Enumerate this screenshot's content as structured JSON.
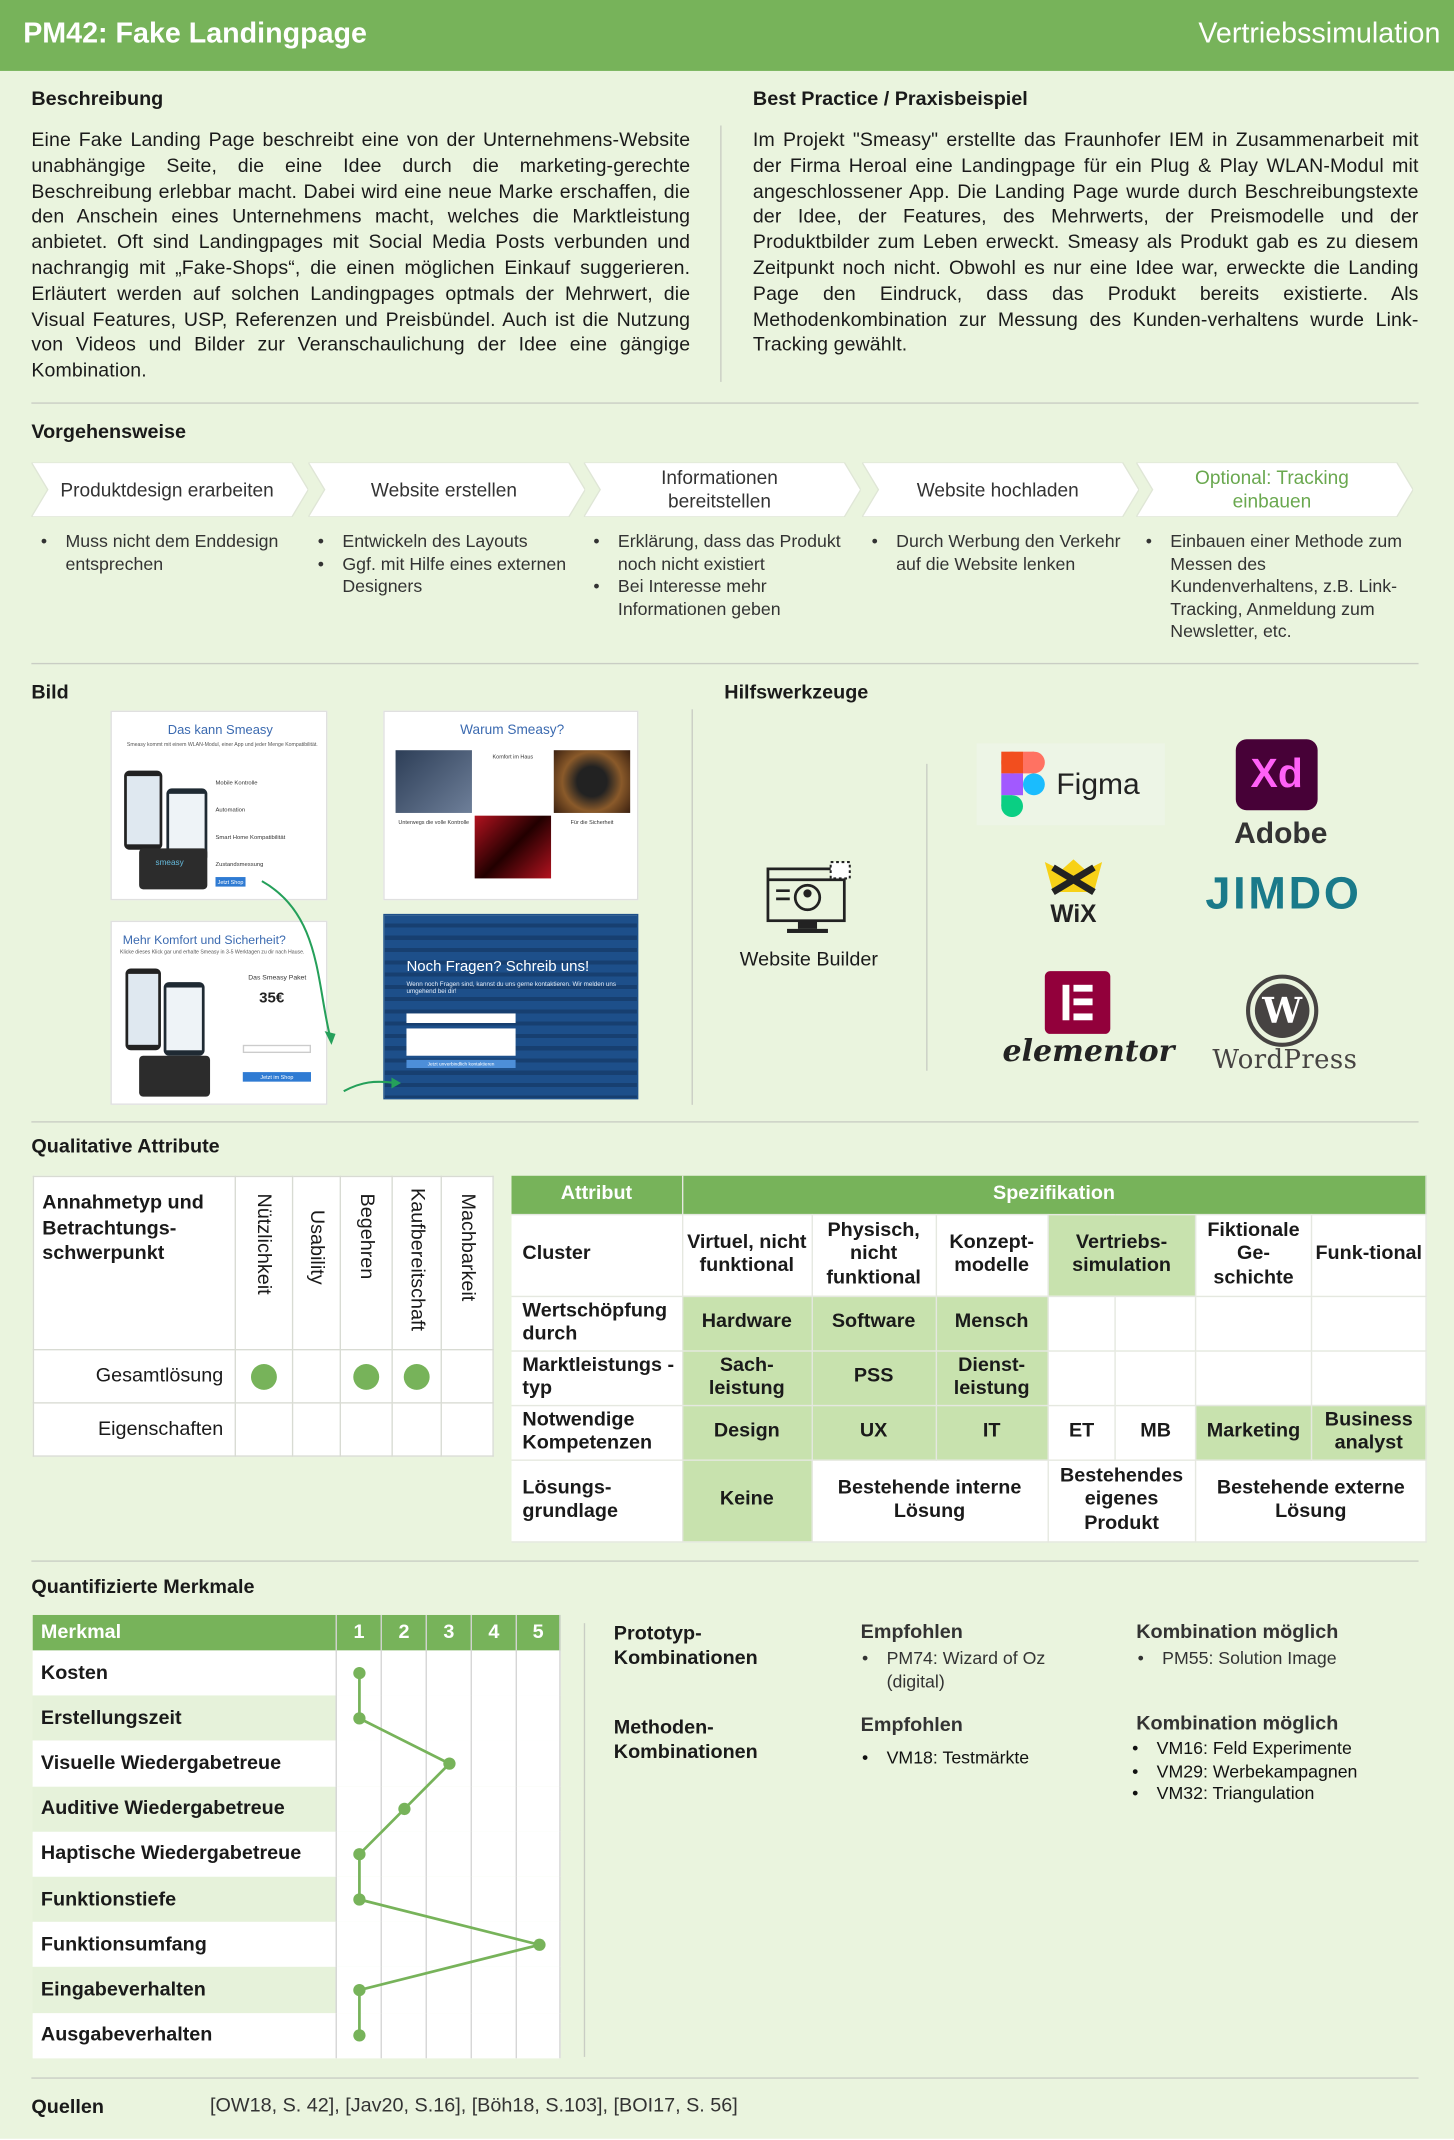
{
  "header": {
    "title": "PM42: Fake Landingpage",
    "category": "Vertriebssimulation"
  },
  "beschreibung": {
    "heading": "Beschreibung",
    "text": "Eine Fake Landing Page beschreibt eine von der Unternehmens-Website unabhängige Seite, die eine Idee durch die marketing-gerechte Beschreibung erlebbar macht. Dabei wird eine neue Marke erschaffen, die den Anschein eines Unternehmens macht, welches die Marktleistung anbietet. Oft sind Landingpages mit Social Media Posts verbunden und nachrangig mit „Fake-Shops“, die einen möglichen Einkauf suggerieren. Erläutert werden auf solchen Landingpages optmals der Mehrwert, die Visual Features, USP, Referenzen und Preisbündel. Auch ist die Nutzung von Videos und Bilder zur Veranschaulichung der Idee eine gängige Kombination."
  },
  "best_practice": {
    "heading": "Best Practice / Praxisbeispiel",
    "text": "Im Projekt \"Smeasy\" erstellte das Fraunhofer IEM in Zusammenarbeit mit der Firma Heroal eine Landingpage für ein Plug & Play WLAN-Modul mit angeschlossener App. Die Landing Page wurde durch Beschreibungstexte der Idee, der Features, des Mehrwerts, der Preismodelle und der Produktbilder zum Leben erweckt. Smeasy als Produkt gab es zu diesem Zeitpunkt noch nicht. Obwohl es nur eine Idee war, erweckte die Landing Page den Eindruck, dass das Produkt bereits existierte. Als Methodenkombination zur Messung des Kunden-verhaltens wurde Link-Tracking gewählt."
  },
  "vorgehensweise": {
    "heading": "Vorgehensweise",
    "steps": [
      {
        "title": "Produktdesign erarbeiten",
        "bullets": [
          "Muss nicht dem Enddesign entsprechen"
        ],
        "optional": false
      },
      {
        "title": "Website erstellen",
        "bullets": [
          "Entwickeln des Layouts",
          "Ggf. mit Hilfe eines externen Designers"
        ],
        "optional": false
      },
      {
        "title": "Informationen bereitstellen",
        "bullets": [
          "Erklärung, dass das Produkt noch nicht existiert",
          "Bei Interesse mehr Informationen geben"
        ],
        "optional": false
      },
      {
        "title": "Website hochladen",
        "bullets": [
          "Durch Werbung den Verkehr auf die Website lenken"
        ],
        "optional": false
      },
      {
        "title": "Optional: Tracking einbauen",
        "bullets": [
          "Einbauen einer Methode zum Messen des Kundenverhaltens, z.B. Link-Tracking, Anmeldung zum Newsletter, etc."
        ],
        "optional": true
      }
    ]
  },
  "bild": {
    "heading": "Bild",
    "shots": [
      {
        "title": "Das kann Smeasy",
        "sub": "Smeasy kommt mit einem WLAN-Modul, einer App und jeder Menge Kompatibilität.",
        "features": [
          "Mobile Kontrolle",
          "Automation",
          "Smart Home Kompatibilität",
          "Zustandsmessung"
        ],
        "cta": "Jetzt Shop"
      },
      {
        "title": "Warum Smeasy?",
        "labels": [
          "Komfort im Haus",
          "Unterwegs die volle Kontrolle",
          "Für die Sicherheit"
        ]
      },
      {
        "title": "Mehr Komfort und Sicherheit?",
        "sub": "Klicke dieses Klick gar und erhalte Smeasy in 3-5 Werktagen zu dir nach Hause.",
        "pkg": "Das Smeasy Paket",
        "price": "35€",
        "cta": "Jetzt im Shop"
      },
      {
        "title": "Noch Fragen? Schreib uns!",
        "sub": "Wenn noch Fragen sind, kannst du uns gerne kontaktieren. Wir melden uns umgehend bei dir!",
        "cta": "Jetzt unverbindlich kontaktieren"
      }
    ]
  },
  "hilfswerkzeuge": {
    "heading": "Hilfswerkzeuge",
    "builder_label": "Website Builder",
    "tools": [
      "Figma",
      "Adobe",
      "Xd",
      "WiX",
      "JIMDO",
      "elementor",
      "WordPress"
    ]
  },
  "qualitativ": {
    "heading": "Qualitative Attribute",
    "focus_label": "Annahmetyp und Betrachtungs-schwerpunkt",
    "columns": [
      "Nützlichkeit",
      "Usability",
      "Begehren",
      "Kaufbereitschaft",
      "Machbarkeit"
    ],
    "rows": [
      {
        "label": "Gesamtlösung",
        "marks": [
          true,
          false,
          true,
          true,
          false
        ]
      },
      {
        "label": "Eigenschaften",
        "marks": [
          false,
          false,
          false,
          false,
          false
        ]
      }
    ],
    "spec_headers": {
      "attribut": "Attribut",
      "spezifikation": "Spezifikation"
    },
    "spec_rows": {
      "cluster": {
        "label": "Cluster",
        "cells": [
          "Virtuel, nicht funktional",
          "Physisch, nicht funktional",
          "Konzept-modelle",
          "Vertriebs-simulation",
          "Fiktionale Ge-schichte",
          "Funk-tional"
        ]
      },
      "wertschoepfung": {
        "label": "Wertschöpfung durch",
        "cells": [
          "Hardware",
          "Software",
          "Mensch"
        ]
      },
      "marktleistung": {
        "label": "Marktleistungs -typ",
        "cells": [
          "Sach-leistung",
          "PSS",
          "Dienst-leistung"
        ]
      },
      "kompetenzen": {
        "label": "Notwendige Kompetenzen",
        "cells": [
          "Design",
          "UX",
          "IT",
          "ET",
          "MB",
          "Marketing",
          "Business analyst"
        ]
      },
      "loesung": {
        "label": "Lösungs-grundlage",
        "cells": [
          "Keine",
          "Bestehende interne Lösung",
          "Bestehendes eigenes Produkt",
          "Bestehende externe Lösung"
        ]
      }
    }
  },
  "quantifiziert": {
    "heading": "Quantifizierte Merkmale",
    "col_label": "Merkmal",
    "scale": [
      "1",
      "2",
      "3",
      "4",
      "5"
    ],
    "rows": [
      {
        "label": "Kosten",
        "value": 1
      },
      {
        "label": "Erstellungszeit",
        "value": 1
      },
      {
        "label": "Visuelle  Wiedergabetreue",
        "value": 3
      },
      {
        "label": "Auditive Wiedergabetreue",
        "value": 2
      },
      {
        "label": "Haptische Wiedergabetreue",
        "value": 1
      },
      {
        "label": "Funktionstiefe",
        "value": 1
      },
      {
        "label": "Funktionsumfang",
        "value": 5
      },
      {
        "label": "Eingabeverhalten",
        "value": 1
      },
      {
        "label": "Ausgabeverhalten",
        "value": 1
      }
    ]
  },
  "kombinationen": {
    "prototyp": {
      "label": "Prototyp-Kombinationen",
      "empf_label": "Empfohlen",
      "empf": [
        "PM74: Wizard of Oz (digital)"
      ],
      "komb_label": "Kombination möglich",
      "komb": [
        "PM55: Solution Image"
      ]
    },
    "methoden": {
      "label": "Methoden-Kombinationen",
      "empf_label": "Empfohlen",
      "empf": [
        "VM18: Testmärkte"
      ],
      "komb_label": "Kombination möglich",
      "komb": [
        "VM16: Feld Experimente",
        "VM29: Werbekampagnen",
        "VM32: Triangulation"
      ]
    }
  },
  "quellen": {
    "label": "Quellen",
    "text": "[OW18, S. 42], [Jav20, S.16], [Böh18, S.103], [BOI17, S. 56]"
  },
  "colors": {
    "accent": "#77b35a",
    "light": "#c8e2ae",
    "background": "#eaf4de"
  }
}
